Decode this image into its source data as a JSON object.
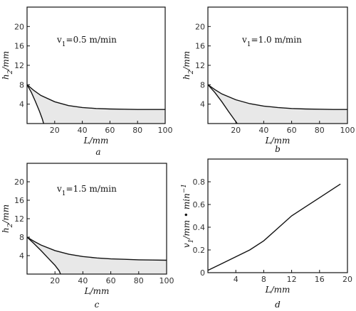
{
  "chart_data": [
    {
      "type": "area",
      "panel": "a",
      "annotation": "v₁=0.5 m/min",
      "xlabel": "L/mm",
      "ylabel": "h₂/mm",
      "xlim": [
        0,
        100
      ],
      "ylim": [
        0,
        24
      ],
      "xticks": [
        20,
        40,
        60,
        80,
        100
      ],
      "yticks": [
        4,
        8,
        12,
        16,
        20
      ],
      "series": [
        {
          "x": [
            0,
            5,
            10,
            20,
            30,
            40,
            50,
            60,
            70,
            80,
            90,
            100
          ],
          "values": [
            8,
            6.8,
            5.8,
            4.5,
            3.7,
            3.3,
            3.1,
            3.0,
            2.95,
            2.9,
            2.9,
            2.9
          ]
        },
        {
          "x": [
            0,
            3,
            6,
            9,
            11,
            12
          ],
          "values": [
            8,
            6.5,
            4.6,
            2.5,
            1.0,
            0
          ]
        }
      ]
    },
    {
      "type": "area",
      "panel": "b",
      "annotation": "v₁=1.0 m/min",
      "xlabel": "L/mm",
      "ylabel": "h₂/mm",
      "xlim": [
        0,
        100
      ],
      "ylim": [
        0,
        24
      ],
      "xticks": [
        20,
        40,
        60,
        80,
        100
      ],
      "yticks": [
        4,
        8,
        12,
        16,
        20
      ],
      "series": [
        {
          "x": [
            0,
            5,
            10,
            20,
            30,
            40,
            50,
            60,
            70,
            80,
            90,
            100
          ],
          "values": [
            8,
            7.0,
            6.1,
            4.9,
            4.1,
            3.6,
            3.3,
            3.1,
            3.0,
            2.95,
            2.9,
            2.9
          ]
        },
        {
          "x": [
            0,
            5,
            10,
            15,
            19,
            21
          ],
          "values": [
            8,
            6.4,
            4.5,
            2.4,
            0.8,
            0
          ]
        }
      ]
    },
    {
      "type": "area",
      "panel": "c",
      "annotation": "v₁=1.5 m/min",
      "xlabel": "L/mm",
      "ylabel": "h₂/mm",
      "xlim": [
        0,
        100
      ],
      "ylim": [
        0,
        24
      ],
      "xticks": [
        20,
        40,
        60,
        80,
        100
      ],
      "yticks": [
        4,
        8,
        12,
        16,
        20
      ],
      "series": [
        {
          "x": [
            0,
            5,
            10,
            20,
            30,
            40,
            50,
            60,
            70,
            80,
            90,
            100
          ],
          "values": [
            8,
            7.1,
            6.3,
            5.1,
            4.3,
            3.8,
            3.5,
            3.3,
            3.2,
            3.1,
            3.05,
            3.0
          ]
        },
        {
          "x": [
            0,
            5,
            10,
            15,
            20,
            23,
            24
          ],
          "values": [
            8,
            6.6,
            5.1,
            3.5,
            1.9,
            0.7,
            0
          ]
        }
      ]
    },
    {
      "type": "line",
      "panel": "d",
      "xlabel": "L/mm",
      "ylabel": "v₁/mm • min⁻¹",
      "xlim": [
        0,
        20
      ],
      "ylim": [
        0,
        1.0
      ],
      "xticks": [
        4,
        8,
        12,
        16,
        20
      ],
      "yticks": [
        0.2,
        0.4,
        0.6,
        0.8
      ],
      "series": [
        {
          "x": [
            0,
            2,
            4,
            6,
            8,
            10,
            12,
            14,
            16,
            18,
            19
          ],
          "values": [
            0.02,
            0.08,
            0.14,
            0.2,
            0.28,
            0.39,
            0.5,
            0.58,
            0.66,
            0.74,
            0.78
          ]
        }
      ]
    }
  ]
}
